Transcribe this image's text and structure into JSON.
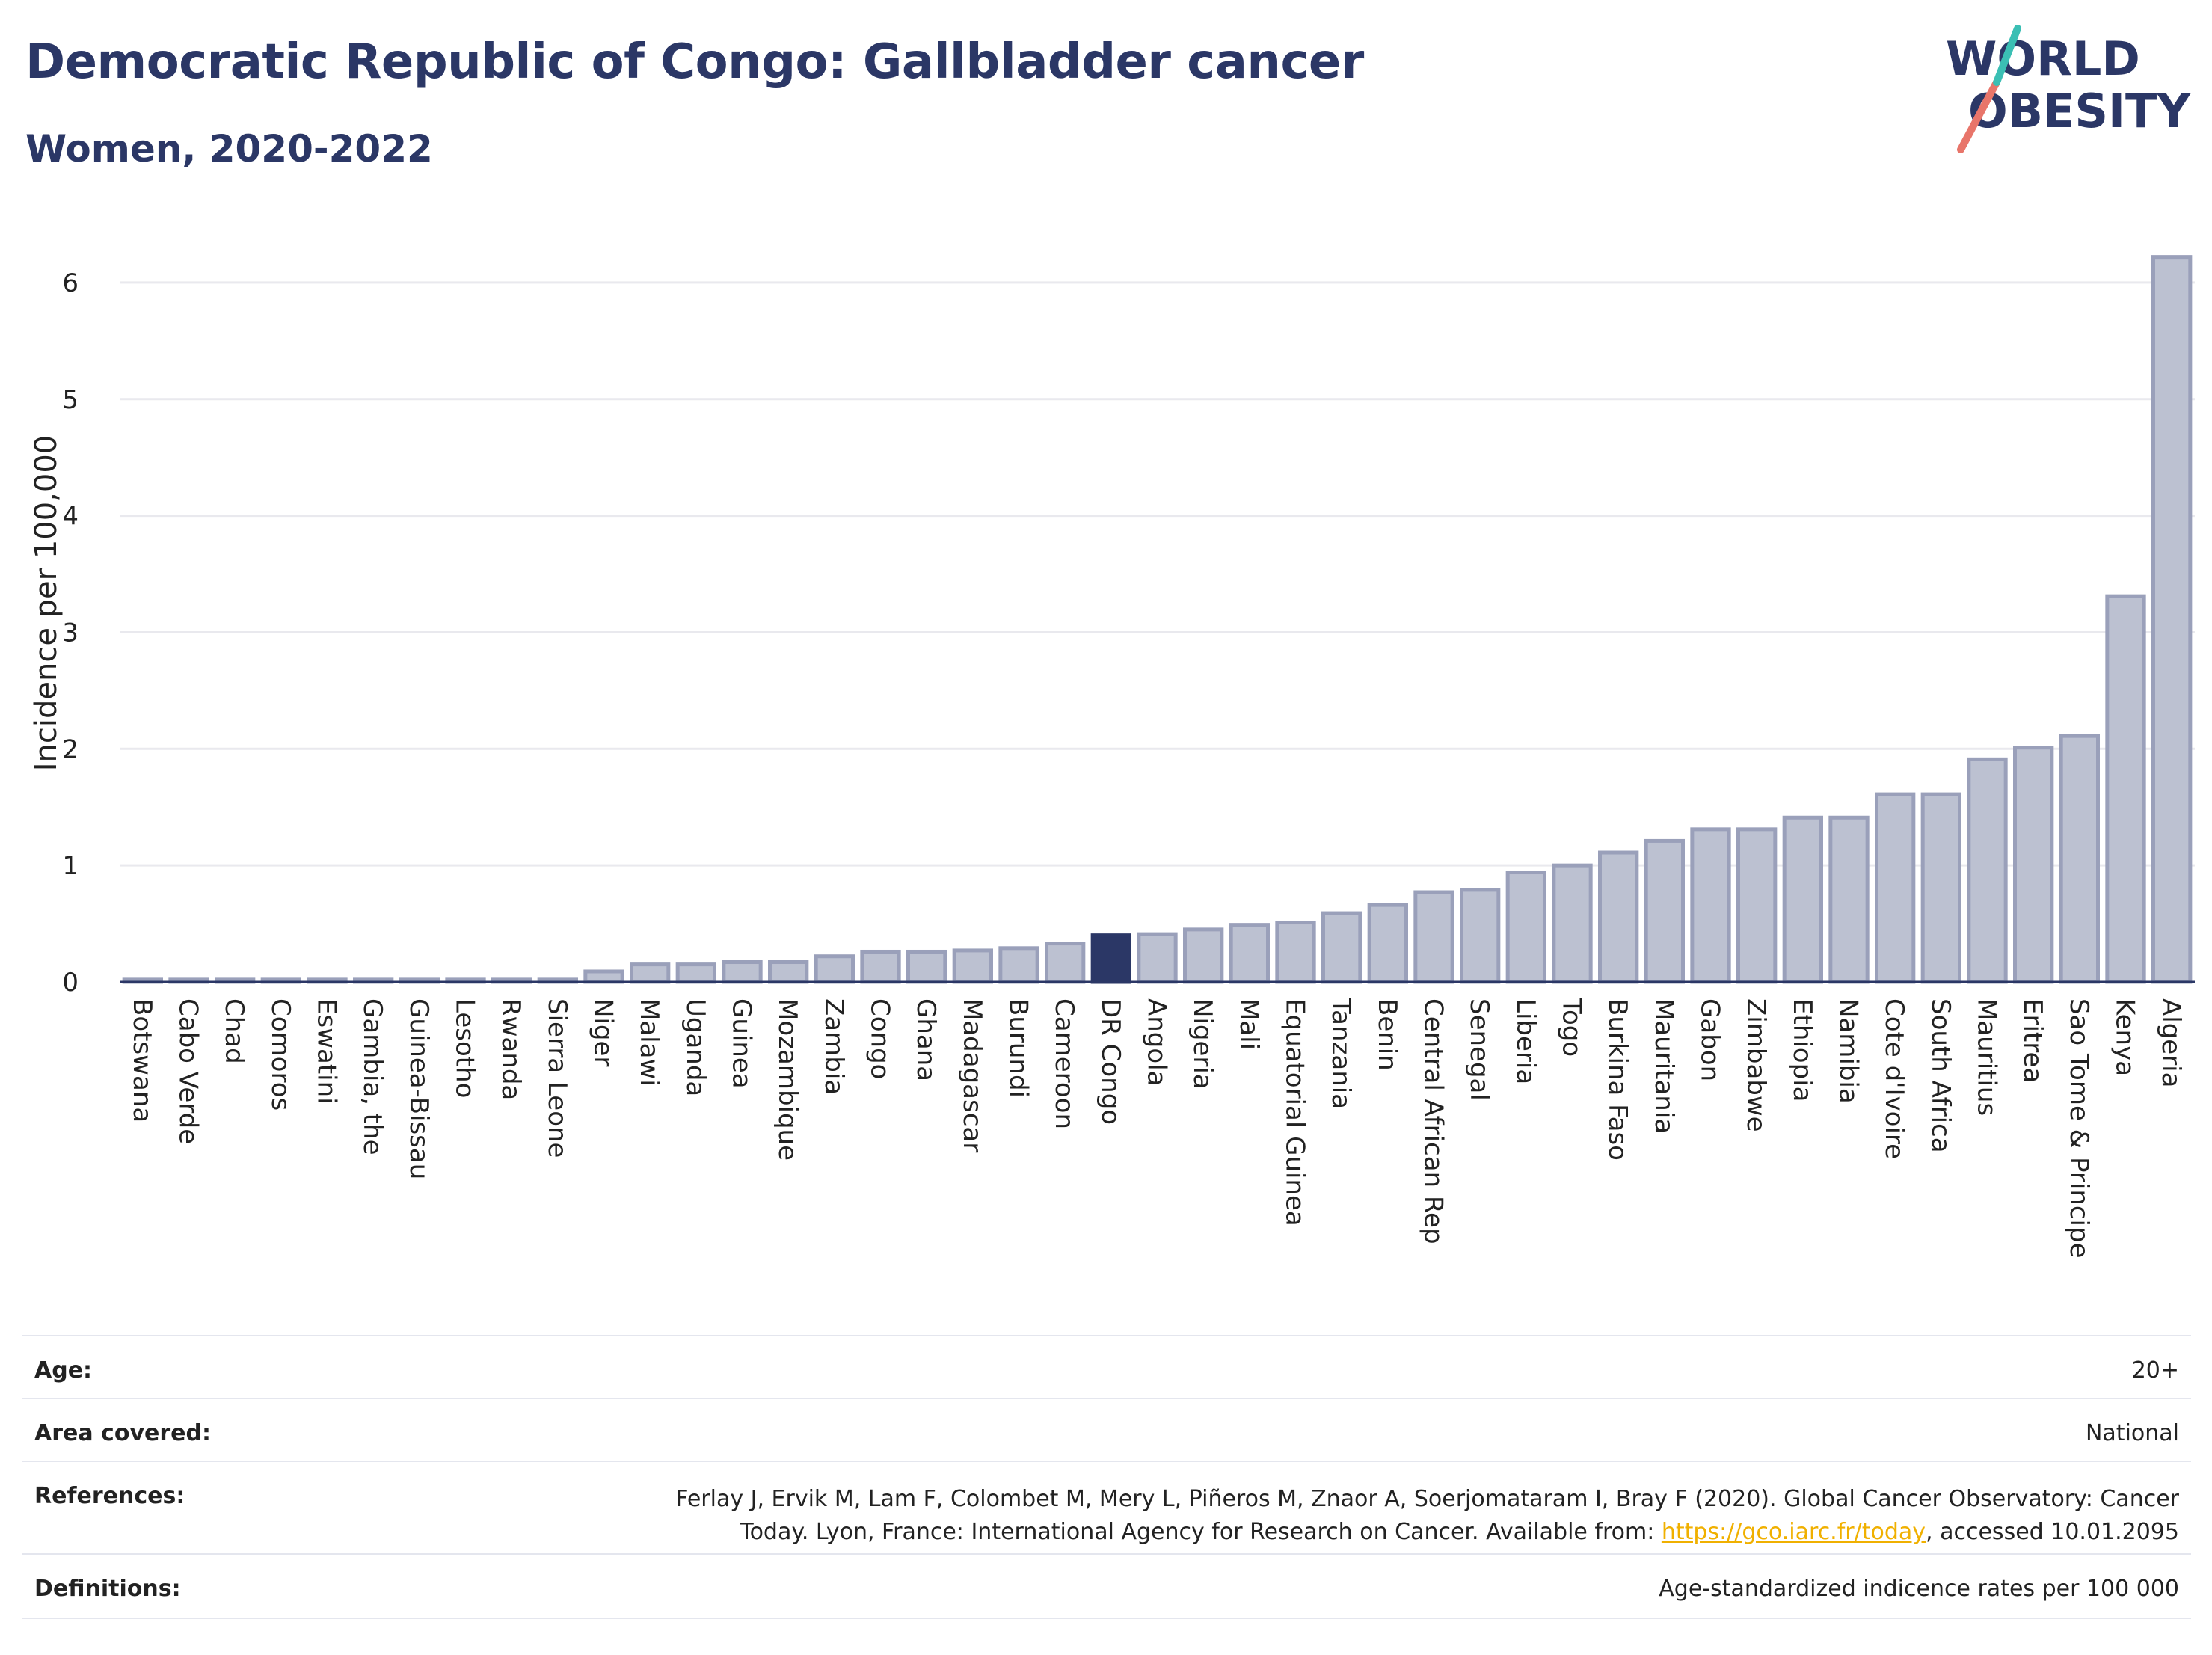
{
  "header": {
    "title": "Democratic Republic of Congo: Gallbladder cancer",
    "subtitle": "Women, 2020-2022"
  },
  "logo": {
    "line1": "WORLD",
    "line2": "OBESITY"
  },
  "colors": {
    "accent": "#2b3766",
    "bar_fill": "#bcc1d1",
    "bar_stroke": "#9aa0ba",
    "highlight": "#2b3766",
    "grid": "#e9e9ee",
    "link": "#f0b000",
    "logo_teal": "#3bbfb4",
    "logo_coral": "#e8756a"
  },
  "chart_data": {
    "type": "bar",
    "ylabel": "Incidence per 100,000",
    "ylim": [
      0,
      6.5
    ],
    "yticks": [
      0,
      1,
      2,
      3,
      4,
      5,
      6
    ],
    "highlight": "DR Congo",
    "categories": [
      "Botswana",
      "Cabo Verde",
      "Chad",
      "Comoros",
      "Eswatini",
      "Gambia, the",
      "Guinea-Bissau",
      "Lesotho",
      "Rwanda",
      "Sierra Leone",
      "Niger",
      "Malawi",
      "Uganda",
      "Guinea",
      "Mozambique",
      "Zambia",
      "Congo",
      "Ghana",
      "Madagascar",
      "Burundi",
      "Cameroon",
      "DR Congo",
      "Angola",
      "Nigeria",
      "Mali",
      "Equatorial Guinea",
      "Tanzania",
      "Benin",
      "Central African Rep",
      "Senegal",
      "Liberia",
      "Togo",
      "Burkina Faso",
      "Mauritania",
      "Gabon",
      "Zimbabwe",
      "Ethiopia",
      "Namibia",
      "Cote d'Ivoire",
      "South Africa",
      "Mauritius",
      "Eritrea",
      "Sao Tome & Principe",
      "Kenya",
      "Algeria"
    ],
    "values": [
      0.02,
      0.02,
      0.02,
      0.02,
      0.02,
      0.02,
      0.02,
      0.02,
      0.02,
      0.02,
      0.09,
      0.15,
      0.15,
      0.17,
      0.17,
      0.22,
      0.26,
      0.26,
      0.27,
      0.29,
      0.33,
      0.4,
      0.41,
      0.45,
      0.49,
      0.51,
      0.59,
      0.66,
      0.77,
      0.79,
      0.94,
      1.0,
      1.11,
      1.21,
      1.31,
      1.31,
      1.41,
      1.41,
      1.61,
      1.61,
      1.91,
      2.01,
      2.11,
      3.31,
      6.22
    ]
  },
  "info": {
    "age_label": "Age:",
    "age_value": "20+",
    "area_label": "Area covered:",
    "area_value": "National",
    "ref_label": "References:",
    "ref_line1": "Ferlay J, Ervik M, Lam F, Colombet M, Mery L, Piñeros M, Znaor A, Soerjomataram I, Bray F (2020). Global Cancer Observatory: Cancer",
    "ref_line2_pre": "Today. Lyon, France: International Agency for Research on Cancer. Available from: ",
    "ref_link": "https://gco.iarc.fr/today",
    "ref_line2_post": ", accessed 10.01.2095",
    "def_label": "Definitions:",
    "def_value": "Age-standardized indicence rates per 100 000"
  }
}
